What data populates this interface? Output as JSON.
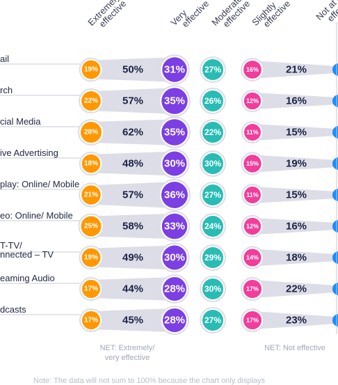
{
  "headers": {
    "extremely": [
      "Extremely",
      "effective"
    ],
    "very": [
      "Very",
      "effective"
    ],
    "moderately": [
      "Moderately",
      "effective"
    ],
    "slightly": [
      "Slightly",
      "effective"
    ],
    "not": [
      "Not at all",
      "effective"
    ]
  },
  "footer": {
    "net_effective": [
      "NET: Extremely/",
      "very effective"
    ],
    "net_not_effective": "NET: Not effective",
    "note": "Note: The data will not sum to 100% because the chart only displays"
  },
  "colors": {
    "extremely": "#ff9800",
    "very": "#7b3fe4",
    "moderately": "#29bcb4",
    "slightly": "#f13d9c",
    "not": "#1a8cff",
    "band": "#dcdde6",
    "text_dark": "#1b2346"
  },
  "chart_data": {
    "type": "table",
    "categories": [
      "Email",
      "Search",
      "Social Media",
      "Native Advertising",
      "Display: Online/ Mobile",
      "Video: Online/ Mobile",
      "OTT/ Connected – TV",
      "Streaming Audio",
      "Podcasts"
    ],
    "visible_labels": [
      [
        "ail"
      ],
      [
        "rch"
      ],
      [
        "cial Media"
      ],
      [
        "ive Advertising"
      ],
      [
        "play: Online/ Mobile"
      ],
      [
        "eo: Online/ Mobile"
      ],
      [
        "T-TV/",
        "nnected – TV"
      ],
      [
        "eaming Audio"
      ],
      [
        "dcasts"
      ]
    ],
    "series": [
      {
        "name": "Extremely effective",
        "values": [
          19,
          22,
          28,
          18,
          21,
          25,
          19,
          17,
          17
        ]
      },
      {
        "name": "NET: Extremely/ very effective",
        "values": [
          50,
          57,
          62,
          48,
          57,
          58,
          49,
          44,
          45
        ]
      },
      {
        "name": "Very effective",
        "values": [
          31,
          35,
          35,
          30,
          36,
          33,
          30,
          28,
          28
        ]
      },
      {
        "name": "Moderately effective",
        "values": [
          27,
          26,
          22,
          30,
          27,
          24,
          29,
          30,
          27
        ]
      },
      {
        "name": "Slightly effective",
        "values": [
          16,
          12,
          11,
          15,
          11,
          12,
          14,
          17,
          17
        ]
      },
      {
        "name": "NET: Not effective",
        "values": [
          21,
          16,
          15,
          19,
          15,
          16,
          18,
          22,
          23
        ]
      }
    ],
    "unit": "%"
  }
}
